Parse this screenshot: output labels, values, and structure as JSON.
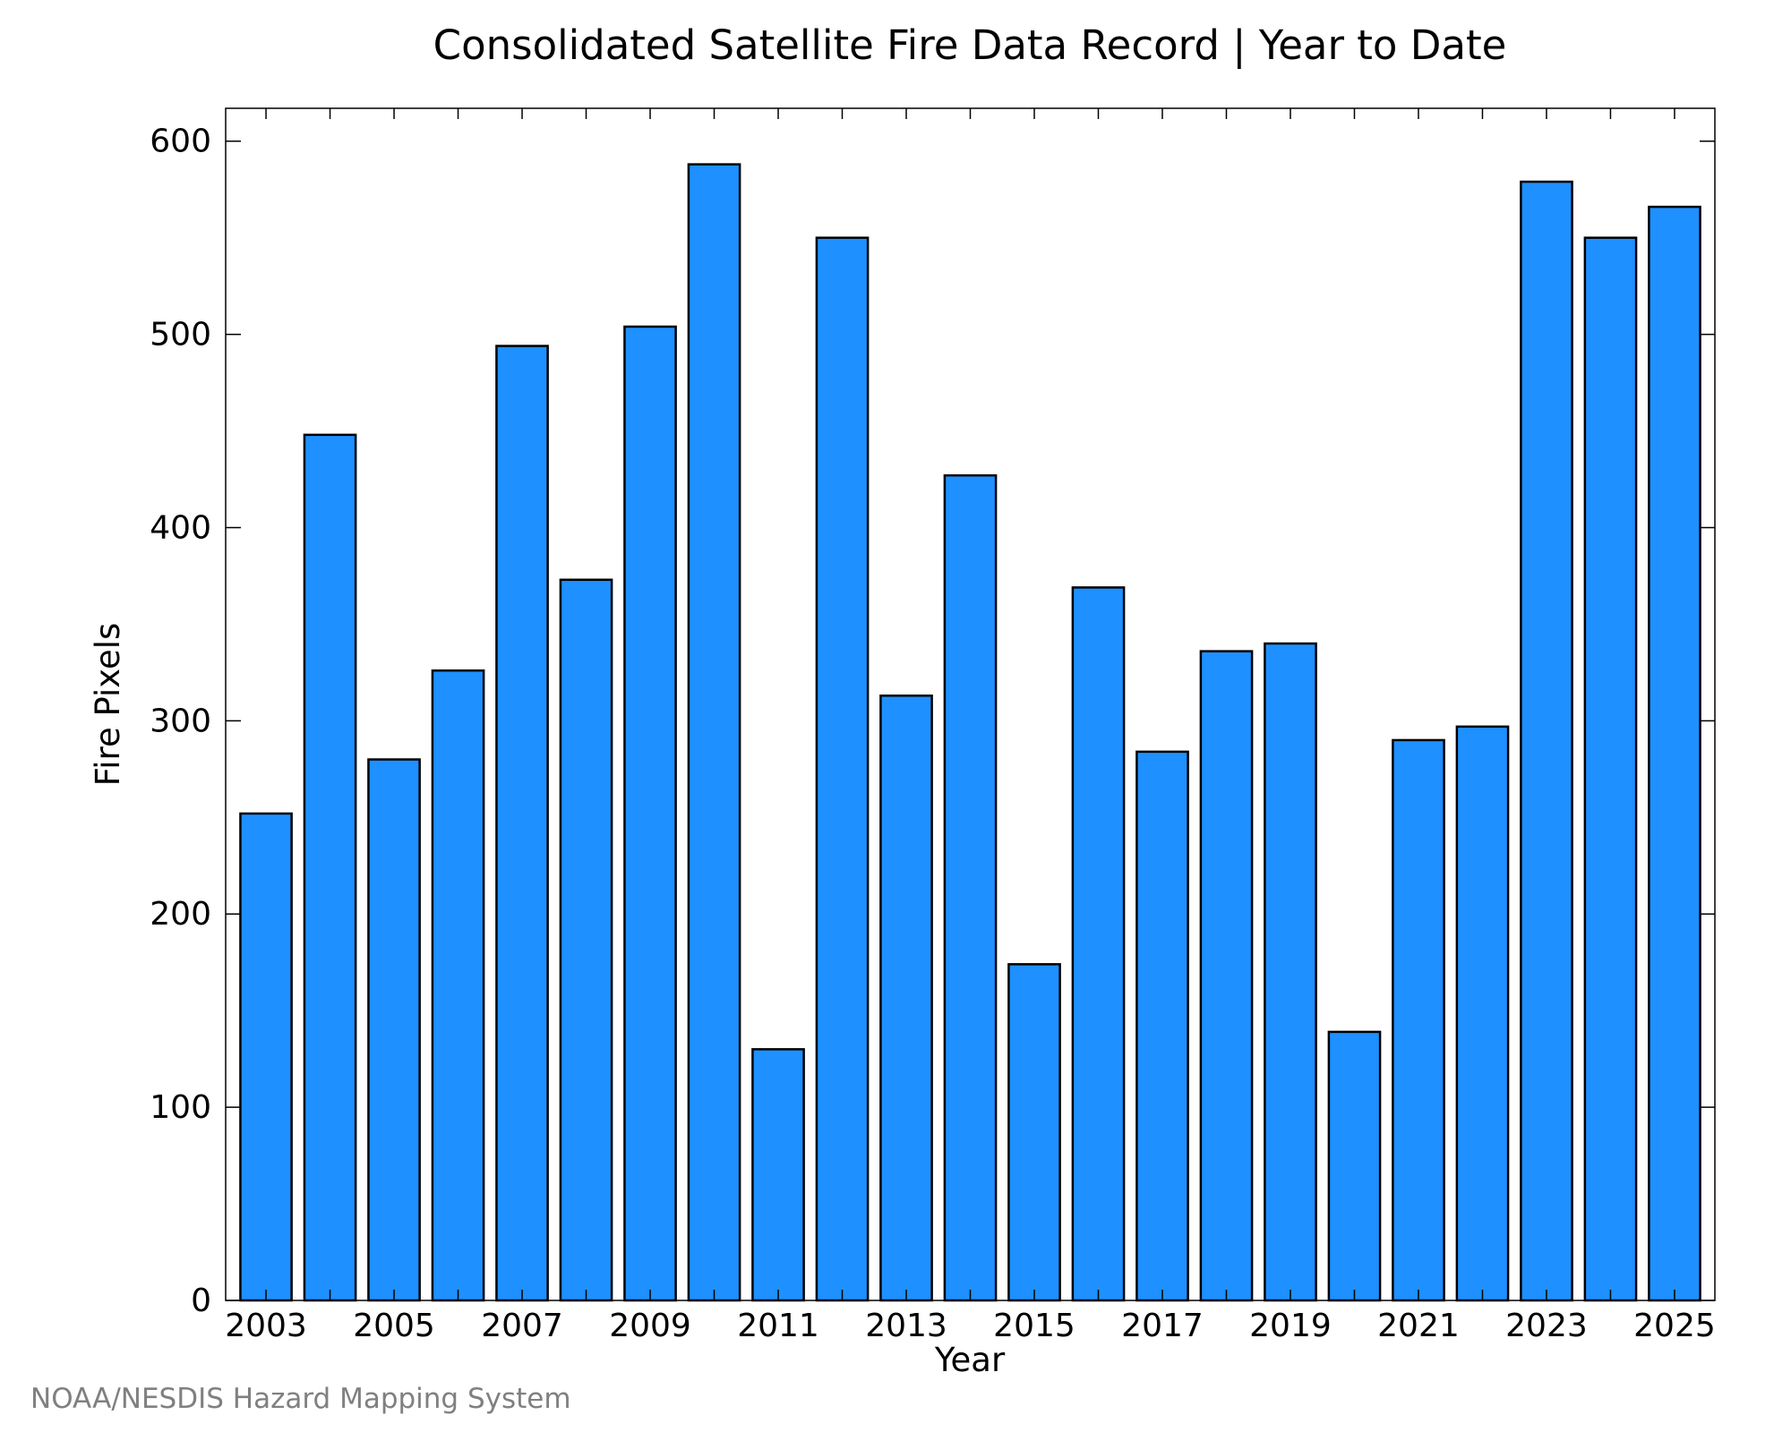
{
  "chart_data": {
    "type": "bar",
    "title": "Consolidated Satellite Fire Data Record | Year to Date",
    "xlabel": "Year",
    "ylabel": "Fire Pixels",
    "categories": [
      2003,
      2004,
      2005,
      2006,
      2007,
      2008,
      2009,
      2010,
      2011,
      2012,
      2013,
      2014,
      2015,
      2016,
      2017,
      2018,
      2019,
      2020,
      2021,
      2022,
      2023,
      2024,
      2025
    ],
    "values": [
      252,
      448,
      280,
      326,
      494,
      373,
      504,
      588,
      130,
      550,
      313,
      427,
      174,
      369,
      284,
      336,
      340,
      139,
      290,
      297,
      579,
      550,
      566
    ],
    "x_tick_labels": [
      "2003",
      "2005",
      "2007",
      "2009",
      "2011",
      "2013",
      "2015",
      "2017",
      "2019",
      "2021",
      "2023",
      "2025"
    ],
    "y_tick_labels": [
      "0",
      "100",
      "200",
      "300",
      "400",
      "500",
      "600"
    ],
    "ylim": [
      0,
      617
    ],
    "bar_color": "#1e90ff",
    "bar_edge_color": "#000000",
    "grid": false,
    "legend": false
  },
  "credit": "NOAA/NESDIS Hazard Mapping System"
}
